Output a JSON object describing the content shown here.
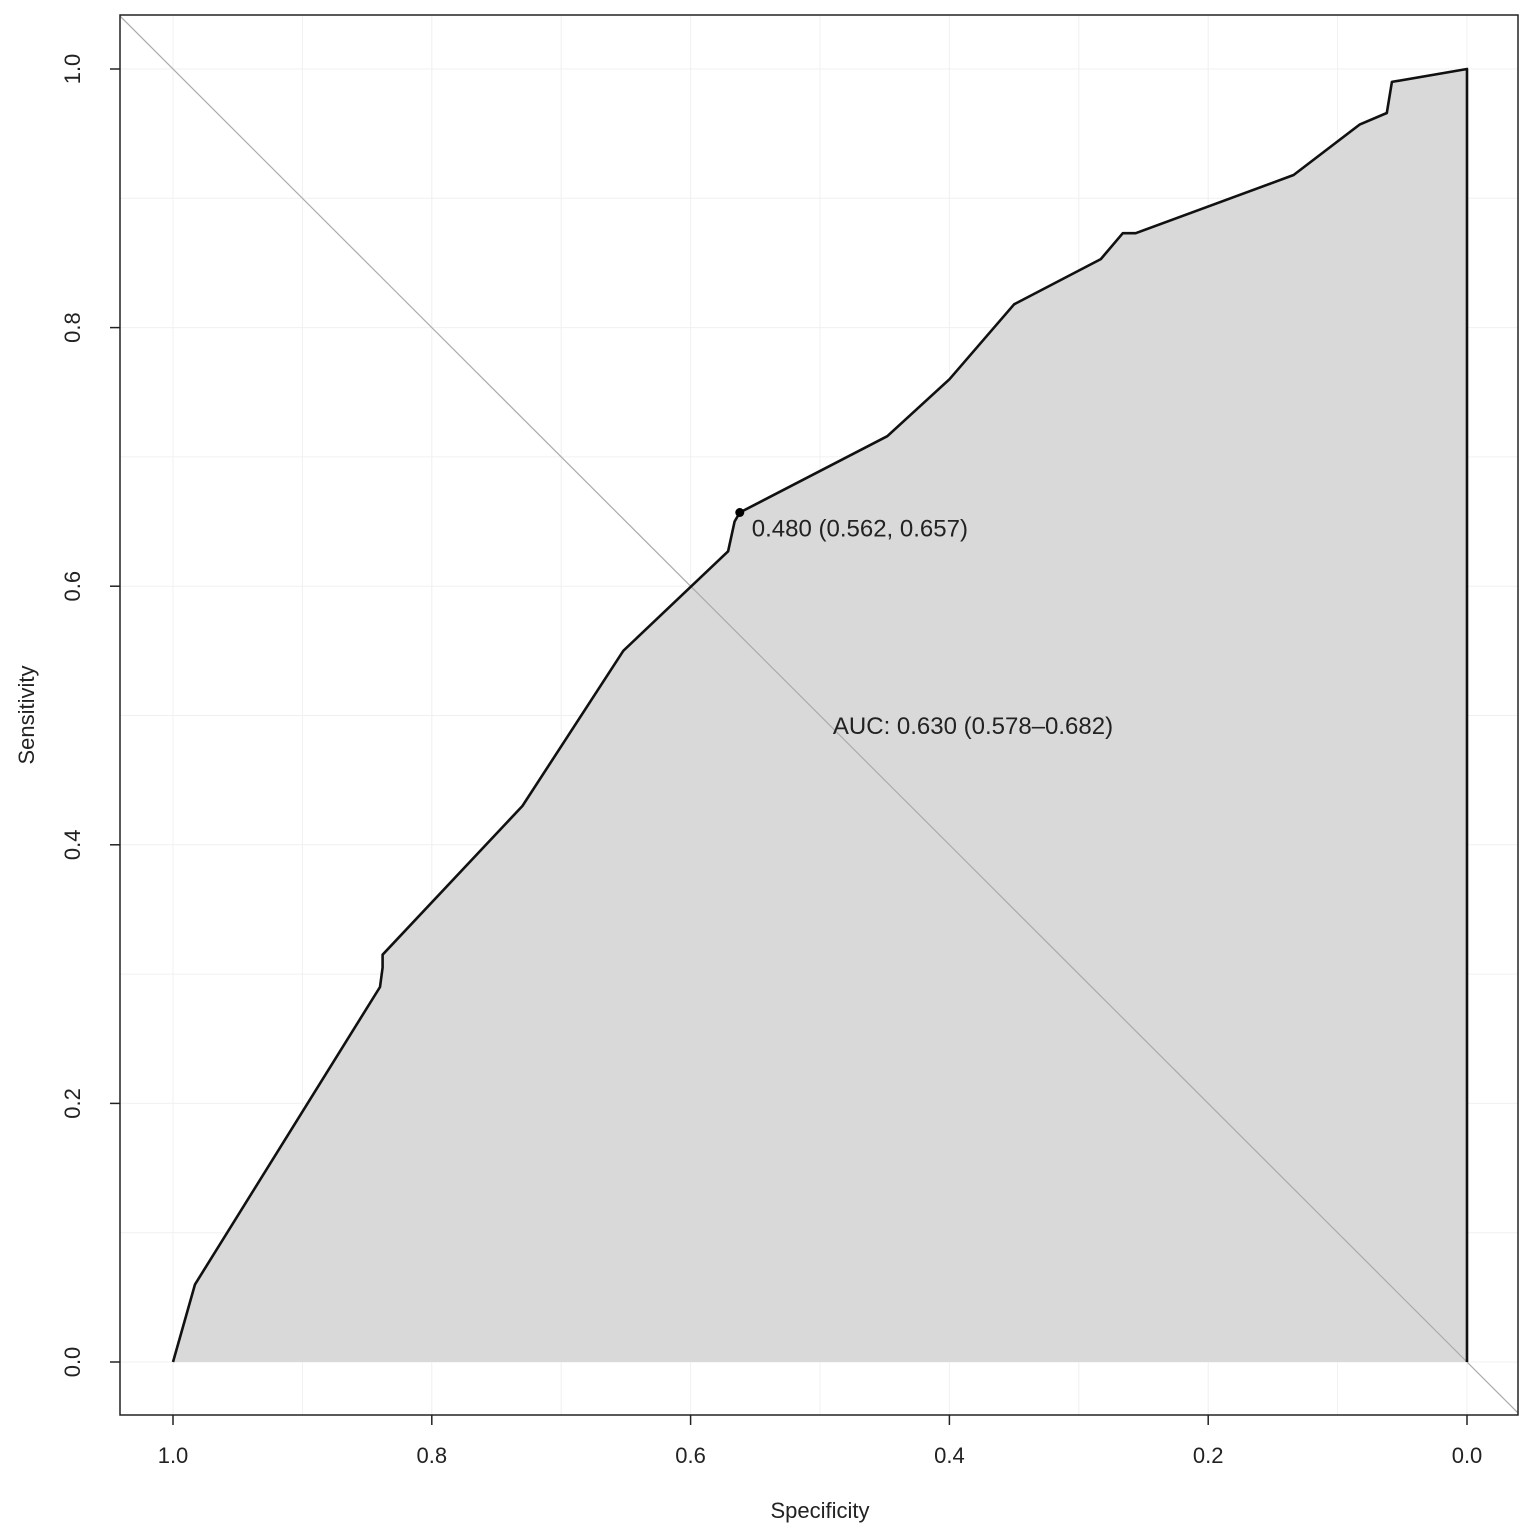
{
  "chart_data": {
    "type": "line",
    "xlabel": "Specificity",
    "ylabel": "Sensitivity",
    "xlim": [
      1.0,
      0.0
    ],
    "ylim": [
      0.0,
      1.0
    ],
    "x_reversed": true,
    "x_ticks": [
      "1.0",
      "0.8",
      "0.6",
      "0.4",
      "0.2",
      "0.0"
    ],
    "y_ticks": [
      "0.0",
      "0.2",
      "0.4",
      "0.6",
      "0.8",
      "1.0"
    ],
    "grid": true,
    "area_filled": true,
    "area_color": "#d9d9d9",
    "line_color": "#111111",
    "diagonal_color": "#aaaaaa",
    "series": [
      {
        "x": [
          1.0,
          0.983,
          0.84,
          0.838,
          0.838,
          0.73,
          0.652,
          0.571,
          0.566,
          0.562,
          0.448,
          0.4,
          0.35,
          0.283,
          0.266,
          0.256,
          0.134,
          0.083,
          0.062,
          0.058,
          0.058,
          0.0,
          0.0
        ],
        "y": [
          0.0,
          0.06,
          0.29,
          0.305,
          0.315,
          0.43,
          0.55,
          0.627,
          0.65,
          0.657,
          0.716,
          0.76,
          0.818,
          0.853,
          0.873,
          0.873,
          0.918,
          0.957,
          0.966,
          0.99,
          0.99,
          1.0,
          0.0
        ]
      }
    ],
    "point": {
      "x": 0.562,
      "y": 0.657,
      "label": "0.480 (0.562, 0.657)"
    },
    "annotations": [
      "AUC: 0.630 (0.578–0.682)"
    ]
  }
}
